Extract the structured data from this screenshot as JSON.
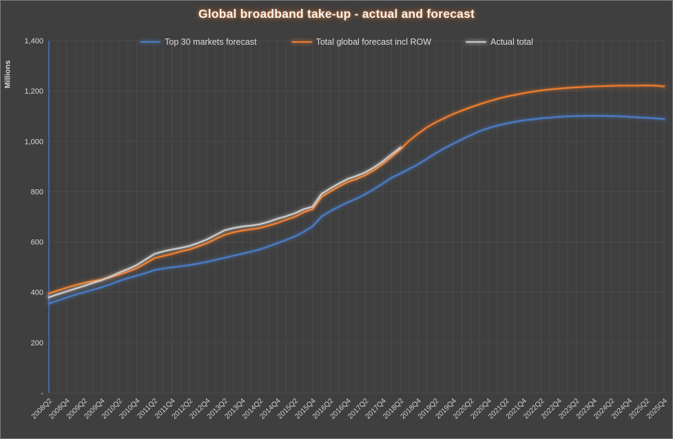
{
  "chart_data": {
    "type": "line",
    "title": "Global broadband take-up - actual and forecast",
    "legend_position": "top",
    "grid": true,
    "colors": {
      "background": "#3f3f3f",
      "gridline": "#4b4b4b",
      "axis_line": "#4472c4",
      "tick_text": "#d9d9d9",
      "x_tick_text": "#cfcfcf",
      "title_text": "#f4f4f4",
      "title_glow": "#f07d2d"
    },
    "y_axis": {
      "label": "Millions",
      "min": 0,
      "max": 1400,
      "step": 200,
      "tick_labels": [
        "-",
        "200",
        "400",
        "600",
        "800",
        "1,000",
        "1,200",
        "1,400"
      ]
    },
    "x_axis": {
      "first_quarter": "2008Q2",
      "last_quarter": "2025Q4",
      "points_per_series": 71,
      "label_every": 2,
      "tick_labels": [
        "2008Q2",
        "2008Q4",
        "2009Q2",
        "2009Q4",
        "2010Q2",
        "2010Q4",
        "2011Q2",
        "2011Q4",
        "2012Q2",
        "2012Q4",
        "2013Q2",
        "2013Q4",
        "2014Q2",
        "2014Q4",
        "2015Q2",
        "2015Q4",
        "2016Q2",
        "2016Q4",
        "2017Q2",
        "2017Q4",
        "2018Q2",
        "2018Q4",
        "2019Q2",
        "2019Q4",
        "2020Q2",
        "2020Q4",
        "2021Q2",
        "2021Q4",
        "2022Q2",
        "2022Q4",
        "2023Q2",
        "2023Q4",
        "2024Q2",
        "2024Q4",
        "2025Q2",
        "2025Q4"
      ]
    },
    "series": [
      {
        "name": "Top 30 markets forecast",
        "color": "#4a7cc4",
        "glow": "rgba(80,130,210,0.55)",
        "start_index": 0,
        "values": [
          355,
          367,
          379,
          390,
          400,
          410,
          420,
          432,
          445,
          456,
          466,
          476,
          488,
          494,
          499,
          503,
          508,
          514,
          521,
          529,
          537,
          545,
          553,
          561,
          570,
          582,
          595,
          608,
          622,
          640,
          662,
          700,
          722,
          740,
          757,
          772,
          790,
          810,
          832,
          855,
          872,
          890,
          908,
          930,
          952,
          972,
          990,
          1008,
          1024,
          1040,
          1052,
          1062,
          1070,
          1077,
          1083,
          1087,
          1091,
          1094,
          1097,
          1099,
          1100,
          1101,
          1101,
          1101,
          1100,
          1099,
          1097,
          1095,
          1093,
          1091,
          1088
        ]
      },
      {
        "name": "Total global forecast incl ROW",
        "color": "#ef7d2d",
        "glow": "rgba(240,125,45,0.55)",
        "start_index": 0,
        "values": [
          395,
          407,
          418,
          428,
          437,
          444,
          450,
          460,
          470,
          482,
          495,
          515,
          535,
          544,
          552,
          562,
          570,
          582,
          595,
          612,
          628,
          638,
          645,
          650,
          655,
          665,
          675,
          688,
          700,
          718,
          730,
          778,
          800,
          820,
          838,
          850,
          865,
          885,
          910,
          938,
          968,
          1002,
          1030,
          1055,
          1075,
          1092,
          1108,
          1122,
          1135,
          1147,
          1158,
          1168,
          1177,
          1184,
          1191,
          1197,
          1202,
          1206,
          1209,
          1212,
          1214,
          1216,
          1218,
          1219,
          1220,
          1221,
          1221,
          1221,
          1222,
          1221,
          1218
        ]
      },
      {
        "name": "Actual total",
        "color": "#cccccc",
        "glow": "rgba(255,255,255,0.45)",
        "start_index": 0,
        "values": [
          380,
          392,
          403,
          414,
          425,
          437,
          448,
          462,
          478,
          492,
          508,
          530,
          552,
          562,
          570,
          576,
          584,
          596,
          610,
          628,
          646,
          655,
          661,
          665,
          670,
          680,
          692,
          702,
          714,
          730,
          740,
          790,
          812,
          832,
          850,
          862,
          876,
          896,
          920,
          948,
          975
        ]
      }
    ]
  }
}
